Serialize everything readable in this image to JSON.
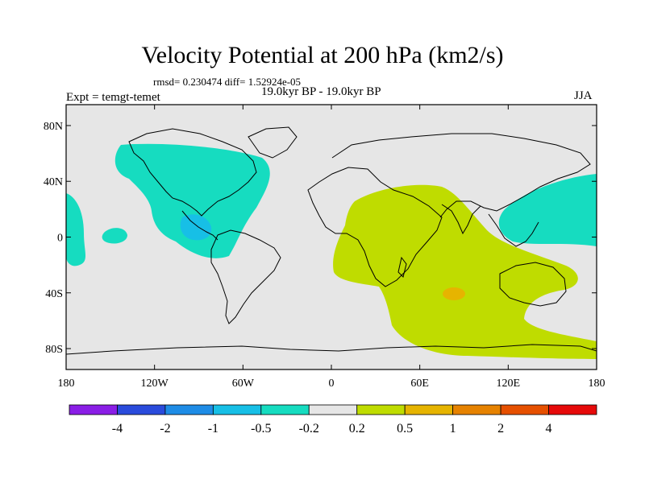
{
  "title": "Velocity Potential at 200 hPa (km2/s)",
  "stats": "rmsd= 0.230474 diff= 1.52924e-05",
  "experiment": "Expt = temgt-temet",
  "period": "19.0kyr BP - 19.0kyr BP",
  "season": "JJA",
  "lat_axis": {
    "labels": [
      "80N",
      "40N",
      "0",
      "40S",
      "80S"
    ],
    "values": [
      80,
      40,
      0,
      -40,
      -80
    ]
  },
  "lon_axis": {
    "labels": [
      "180",
      "120W",
      "60W",
      "0",
      "60E",
      "120E",
      "180"
    ],
    "values": [
      -180,
      -120,
      -60,
      0,
      60,
      120,
      180
    ]
  },
  "colorbar": {
    "labels": [
      "-4",
      "-2",
      "-1",
      "-0.5",
      "-0.2",
      "0.2",
      "0.5",
      "1",
      "2",
      "4"
    ],
    "colors": [
      "#8a1ee6",
      "#2a4bdc",
      "#1e8ce6",
      "#17bfe6",
      "#16dcc0",
      "#e6e6e6",
      "#bfdc00",
      "#e6b400",
      "#e68200",
      "#e65000",
      "#e60a0a"
    ]
  },
  "palette": {
    "background_field": "#e6e6e6",
    "coast": "#000000"
  }
}
